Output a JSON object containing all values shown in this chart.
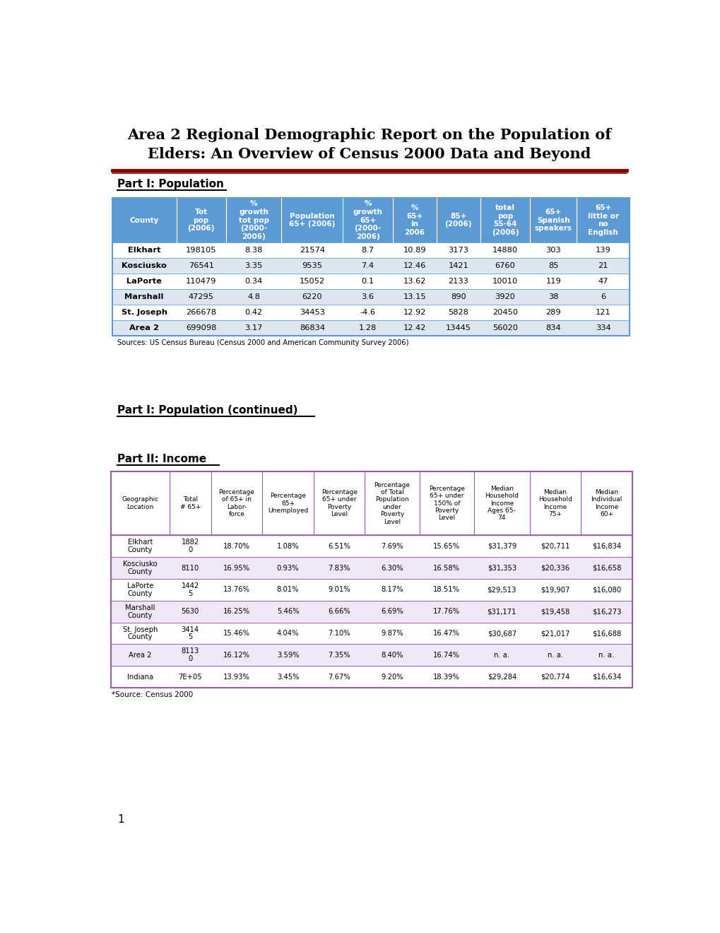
{
  "title_line1": "Area 2 Regional Demographic Report on the Population of",
  "title_line2": "Elders: An Overview of Census 2000 Data and Beyond",
  "section1_label": "Part I: Population",
  "section1_continued_label": "Part I: Population (continued)",
  "section2_label": "Part II: Income",
  "page_number": "1",
  "table1_header_bg": "#5b9bd5",
  "table1_row_odd_bg": "#ffffff",
  "table1_row_even_bg": "#dce6f1",
  "table1_border_color": "#5b9bd5",
  "table1_headers": [
    "County",
    "Tot\npop\n(2006)",
    "%\ngrowth\ntot pop\n(2000-\n2006)",
    "Population\n65+ (2006)",
    "%\ngrowth\n65+\n(2000-\n2006)",
    "%\n65+\nin\n2006",
    "85+\n(2006)",
    "total\npop\n55-64\n(2006)",
    "65+\nSpanish\nspeakers",
    "65+\nlittle or\nno\nEnglish"
  ],
  "table1_rows": [
    [
      "Elkhart",
      "198105",
      "8.38",
      "21574",
      "8.7",
      "10.89",
      "3173",
      "14880",
      "303",
      "139"
    ],
    [
      "Kosciusko",
      "76541",
      "3.35",
      "9535",
      "7.4",
      "12.46",
      "1421",
      "6760",
      "85",
      "21"
    ],
    [
      "LaPorte",
      "110479",
      "0.34",
      "15052",
      "0.1",
      "13.62",
      "2133",
      "10010",
      "119",
      "47"
    ],
    [
      "Marshall",
      "47295",
      "4.8",
      "6220",
      "3.6",
      "13.15",
      "890",
      "3920",
      "38",
      "6"
    ],
    [
      "St. Joseph",
      "266678",
      "0.42",
      "34453",
      "-4.6",
      "12.92",
      "5828",
      "20450",
      "289",
      "121"
    ],
    [
      "Area 2",
      "699098",
      "3.17",
      "86834",
      "1.28",
      "12.42",
      "13445",
      "56020",
      "834",
      "334"
    ]
  ],
  "table1_source": "Sources: US Census Bureau (Census 2000 and American Community Survey 2006)",
  "table2_border_color": "#9b59b6",
  "table2_headers": [
    "Geographic\nLocation",
    "Total\n# 65+",
    "Percentage\nof 65+ in\nLabor-\nforce",
    "Percentage\n65+\nUnemployed",
    "Percentage\n65+ under\nPoverty\nLevel",
    "Percentage\nof Total\nPopulation\nunder\nPoverty\nLevel",
    "Percentage\n65+ under\n150% of\nPoverty\nLevel",
    "Median\nHousehold\nIncome\nAges 65-\n74",
    "Median\nHousehold\nIncome\n75+",
    "Median\nIndividual\nIncome\n60+"
  ],
  "table2_rows": [
    [
      "Elkhart\nCounty",
      "1882\n0",
      "18.70%",
      "1.08%",
      "6.51%",
      "7.69%",
      "15.65%",
      "$31,379",
      "$20,711",
      "$16,834"
    ],
    [
      "Kosciusko\nCounty",
      "8110",
      "16.95%",
      "0.93%",
      "7.83%",
      "6.30%",
      "16.58%",
      "$31,353",
      "$20,336",
      "$16,658"
    ],
    [
      "LaPorte\nCounty",
      "1442\n5",
      "13.76%",
      "8.01%",
      "9.01%",
      "8.17%",
      "18.51%",
      "$29,513",
      "$19,907",
      "$16,080"
    ],
    [
      "Marshall\nCounty",
      "5630",
      "16.25%",
      "5.46%",
      "6.66%",
      "6.69%",
      "17.76%",
      "$31,171",
      "$19,458",
      "$16,273"
    ],
    [
      "St. Joseph\nCounty",
      "3414\n5",
      "15.46%",
      "4.04%",
      "7.10%",
      "9.87%",
      "16.47%",
      "$30,687",
      "$21,017",
      "$16,688"
    ],
    [
      "Area 2",
      "8113\n0",
      "16.12%",
      "3.59%",
      "7.35%",
      "8.40%",
      "16.74%",
      "n. a.",
      "n. a.",
      "n. a."
    ],
    [
      "Indiana",
      "7E+05",
      "13.93%",
      "3.45%",
      "7.67%",
      "9.20%",
      "18.39%",
      "$29,284",
      "$20,774",
      "$16,634"
    ]
  ],
  "table2_source": "*Source: Census 2000"
}
